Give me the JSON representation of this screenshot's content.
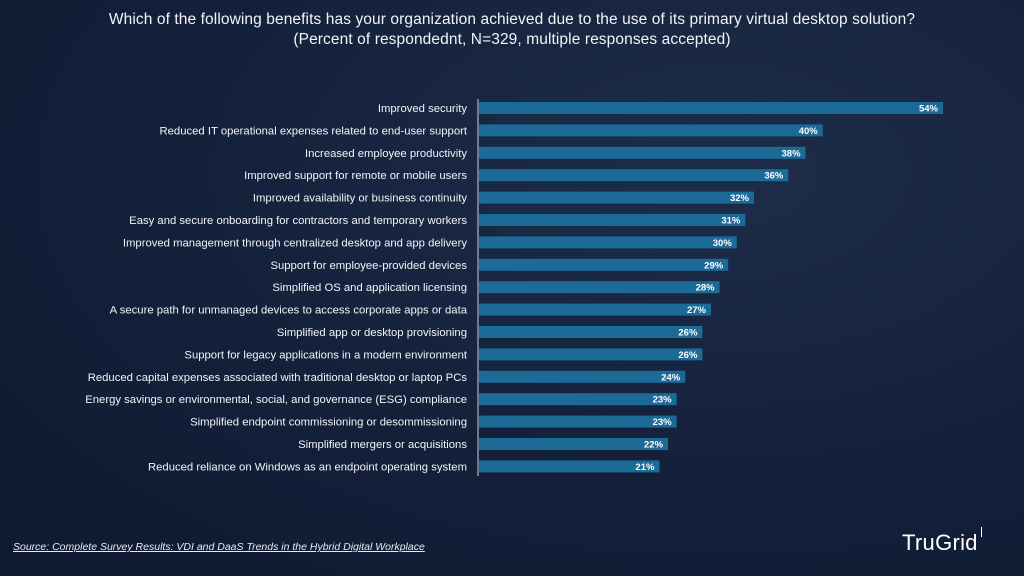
{
  "header": {
    "title": "Which of the following benefits has your organization achieved due to the use of its primary virtual desktop solution?",
    "subtitle": "(Percent of respondednt, N=329, multiple responses accepted)"
  },
  "footer": {
    "source": "Source: Complete Survey Results: VDI and DaaS Trends in the Hybrid Digital Workplace",
    "logo_text": "TruGrid"
  },
  "colors": {
    "bar": "#1c6a96",
    "background": "#14203a",
    "axis": "#c9cfd9",
    "text": "#ffffff"
  },
  "chart_data": {
    "type": "bar",
    "orientation": "horizontal",
    "title": "Which of the following benefits has your organization achieved due to the use of its primary virtual desktop solution?",
    "subtitle": "(Percent of respondednt, N=329, multiple responses accepted)",
    "xlabel": "",
    "ylabel": "",
    "xlim": [
      0,
      54
    ],
    "grid": false,
    "legend": "none",
    "categories": [
      "Improved security",
      "Reduced IT operational expenses related to end-user support",
      "Increased employee productivity",
      "Improved support for remote or mobile users",
      "Improved availability or business continuity",
      "Easy and secure onboarding for contractors and temporary workers",
      "Improved management through centralized desktop and app delivery",
      "Support for employee-provided devices",
      "Simplified OS and application licensing",
      "A secure path for unmanaged devices to access corporate apps or data",
      "Simplified app or desktop provisioning",
      "Support for legacy applications in a modern environment",
      "Reduced capital expenses associated with traditional desktop or laptop PCs",
      "Energy savings or environmental, social, and governance (ESG) compliance",
      "Simplified endpoint commissioning or desommissioning",
      "Simplified mergers or acquisitions",
      "Reduced reliance on Windows as an endpoint operating system"
    ],
    "values": [
      54,
      40,
      38,
      36,
      32,
      31,
      30,
      29,
      28,
      27,
      26,
      26,
      24,
      23,
      23,
      22,
      21
    ],
    "data_labels": [
      "54%",
      "40%",
      "38%",
      "36%",
      "32%",
      "31%",
      "30%",
      "29%",
      "28%",
      "27%",
      "26%",
      "26%",
      "24%",
      "23%",
      "23%",
      "22%",
      "21%"
    ]
  }
}
